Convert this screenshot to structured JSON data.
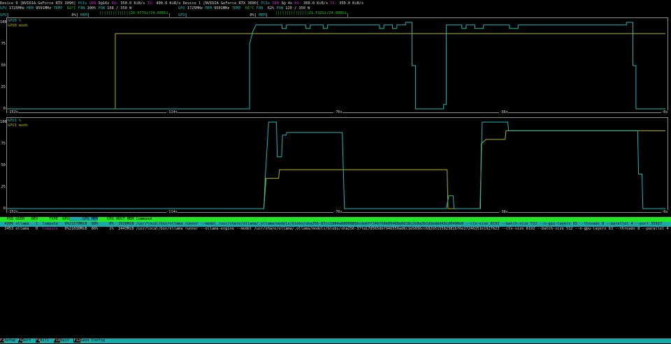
{
  "devices": [
    {
      "name": "Device 0",
      "model": "[NVIDIA GeForce RTX 3090]",
      "pcie_gen": "3@16x",
      "rx": "350.0 KiB/s",
      "tx": "400.0 KiB/s",
      "gpu_clock": "1725MHz",
      "mem_clock": "9501MHz",
      "temp": "82°C",
      "fan": "100%",
      "pow": "158 / 350 W",
      "gpu_util": "0%",
      "mem_used": "20.977Gi/24.000Gi",
      "mem_fraction": 0.874
    },
    {
      "name": "Device 1",
      "model": "[NVIDIA GeForce RTX 3090]",
      "pcie_gen": "3@ 4x",
      "rx": "300.0 KiB/s",
      "tx": "350.0 KiB/s",
      "gpu_clock": "1725MHz",
      "mem_clock": "9501MHz",
      "temp": "66°C",
      "fan": " 62%",
      "pow": "120 / 350 W",
      "gpu_util": "0%",
      "mem_used": "21.512Gi/24.000Gi",
      "mem_fraction": 0.896
    }
  ],
  "labels": {
    "pcie": "PCIe",
    "gen": "GEN",
    "rx": "RX:",
    "tx": "TX:",
    "gpu": "GPU",
    "mem": "MEM",
    "temp": "TEMP",
    "fan": "FAN",
    "pow": "POW"
  },
  "colors": {
    "gpu_line": "#1bb8b8",
    "mem_line": "#b4b400",
    "accent": "#1ba8a8",
    "header_bar": "#22e622",
    "compute": "#c030c0"
  },
  "chart_data": [
    {
      "type": "line",
      "legend": [
        "GPU0 %",
        "GPU0 mem%"
      ],
      "legend_placement": "top-left",
      "ylim": [
        0,
        100
      ],
      "yticks": [
        "100",
        "75",
        "50",
        "25",
        "0"
      ],
      "xlim": [
        -152,
        0
      ],
      "xticks": [
        "-152s",
        "-114s",
        "-76s",
        "-38s",
        "-0s"
      ],
      "series": [
        {
          "name": "GPU0 %",
          "points": [
            [
              -152,
              0
            ],
            [
              -96,
              0
            ],
            [
              -96,
              75
            ],
            [
              -95.2,
              90
            ],
            [
              -94.5,
              97
            ],
            [
              -88.5,
              97
            ],
            [
              -88.5,
              93
            ],
            [
              -87.5,
              93
            ],
            [
              -87.5,
              97
            ],
            [
              -83,
              97
            ],
            [
              -83,
              93
            ],
            [
              -82,
              93
            ],
            [
              -82,
              97
            ],
            [
              -79,
              97
            ],
            [
              -79,
              93
            ],
            [
              -78,
              93
            ],
            [
              -78,
              97
            ],
            [
              -66,
              97
            ],
            [
              -66,
              93
            ],
            [
              -65,
              93
            ],
            [
              -65,
              97
            ],
            [
              -63,
              97
            ],
            [
              -63,
              93
            ],
            [
              -62,
              93
            ],
            [
              -62,
              97
            ],
            [
              -60,
              97
            ],
            [
              -60,
              100
            ],
            [
              -58.5,
              100
            ],
            [
              -58.5,
              50
            ],
            [
              -57.7,
              50
            ],
            [
              -57.7,
              0
            ],
            [
              -51.2,
              0
            ],
            [
              -51.2,
              5
            ],
            [
              -50.6,
              5
            ],
            [
              -50.6,
              97
            ],
            [
              -47,
              97
            ],
            [
              -47,
              93
            ],
            [
              -46,
              93
            ],
            [
              -46,
              97
            ],
            [
              -44,
              97
            ],
            [
              -44,
              93
            ],
            [
              -42,
              93
            ],
            [
              -42,
              97
            ],
            [
              -36,
              97
            ],
            [
              -36,
              93
            ],
            [
              -34,
              93
            ],
            [
              -34,
              97
            ],
            [
              -9,
              97
            ],
            [
              -9,
              100
            ],
            [
              -7.5,
              100
            ],
            [
              -7.5,
              50
            ],
            [
              -6.8,
              50
            ],
            [
              -6.8,
              0
            ],
            [
              0,
              0
            ]
          ]
        },
        {
          "name": "GPU0 mem%",
          "points": [
            [
              -152,
              0
            ],
            [
              -127,
              0
            ],
            [
              -127,
              87
            ],
            [
              0,
              87
            ]
          ]
        }
      ]
    },
    {
      "type": "line",
      "legend": [
        "GPU1 %",
        "GPU1 mem%"
      ],
      "legend_placement": "top-left",
      "ylim": [
        0,
        100
      ],
      "yticks": [
        "100",
        "75",
        "50",
        "25",
        "0"
      ],
      "xlim": [
        -152,
        0
      ],
      "xticks": [
        "-152s",
        "-114s",
        "-76s",
        "-38s",
        "-0s"
      ],
      "series": [
        {
          "name": "GPU1 %",
          "points": [
            [
              -152,
              0
            ],
            [
              -92.7,
              0
            ],
            [
              -92.4,
              35
            ],
            [
              -91.6,
              100
            ],
            [
              -89.8,
              100
            ],
            [
              -89.6,
              60
            ],
            [
              -88.6,
              60
            ],
            [
              -88.4,
              85
            ],
            [
              -87.6,
              85
            ],
            [
              -87.4,
              88
            ],
            [
              -74.6,
              88
            ],
            [
              -74.1,
              0
            ],
            [
              -50.6,
              0
            ],
            [
              -50,
              15
            ],
            [
              -49,
              15
            ],
            [
              -48.8,
              0
            ],
            [
              -42.8,
              0
            ],
            [
              -42.3,
              100
            ],
            [
              -36.4,
              100
            ],
            [
              -36.2,
              90
            ],
            [
              -6.4,
              90
            ],
            [
              -6.2,
              40
            ],
            [
              -5.4,
              40
            ],
            [
              -5.2,
              0
            ],
            [
              0,
              0
            ]
          ]
        },
        {
          "name": "GPU1 mem%",
          "points": [
            [
              -152,
              0
            ],
            [
              -92.7,
              0
            ],
            [
              -92.2,
              35
            ],
            [
              -89.3,
              35
            ],
            [
              -89.1,
              45
            ],
            [
              -50.4,
              45
            ],
            [
              -50.2,
              0
            ],
            [
              -42.7,
              0
            ],
            [
              -42.5,
              75
            ],
            [
              -41.4,
              80
            ],
            [
              -37,
              80
            ],
            [
              -36.8,
              90
            ],
            [
              0,
              90
            ]
          ]
        }
      ]
    }
  ],
  "process_table": {
    "headers": [
      "PID",
      "USER",
      "DEV",
      "TYPE",
      "GPU",
      "GPU MEM",
      "CPU",
      "HOST MEM",
      "Command"
    ],
    "sorted_column": "GPU MEM",
    "rows": [
      {
        "pid": "4209",
        "user": "ollama",
        "dev": "1",
        "type": "Compute",
        "gpu": "0%",
        "gpu_mem": "21570MiB",
        "gpu_mem_pct": "88%",
        "cpu": "0%",
        "host_mem": "1026MiB",
        "command": "/usr/local/bin/ollama runner --model /usr/share/ollama/.ollama/models/blobs/sha256-87cc1894a68008856cde6ff24bfb9b09488a0d18c2e8a2b1ddeabd43cd0498e0 --ctx-size 8192 --batch-size 512 --n-gpu-layers 65 --threads 8 --parallel 4 --port 35927",
        "selected": true
      },
      {
        "pid": "3453",
        "user": "ollama",
        "dev": "0",
        "type": "Compute",
        "gpu": "0%",
        "gpu_mem": "21030MiB",
        "gpu_mem_pct": "86%",
        "cpu": "1%",
        "host_mem": "2443MiB",
        "command": "/usr/local/bin/ollama runner --ollama-engine --model /usr/share/ollama/.ollama/models/blobs/sha256-37fa17d565dbf946550ad6c1e5036cc682b515592381bf6e27246351e1927623 --ctx-size 8192 --batch-size 512 --n-gpu-layers 63 --threads 8 --parallel 4 --po",
        "selected": false
      }
    ]
  },
  "footer": [
    {
      "key": "F2",
      "label": "Setup"
    },
    {
      "key": "F6",
      "label": "Sort"
    },
    {
      "key": "F9",
      "label": "Kill"
    },
    {
      "key": "F10",
      "label": "Quit"
    },
    {
      "key": "F12",
      "label": "Save Config"
    }
  ]
}
